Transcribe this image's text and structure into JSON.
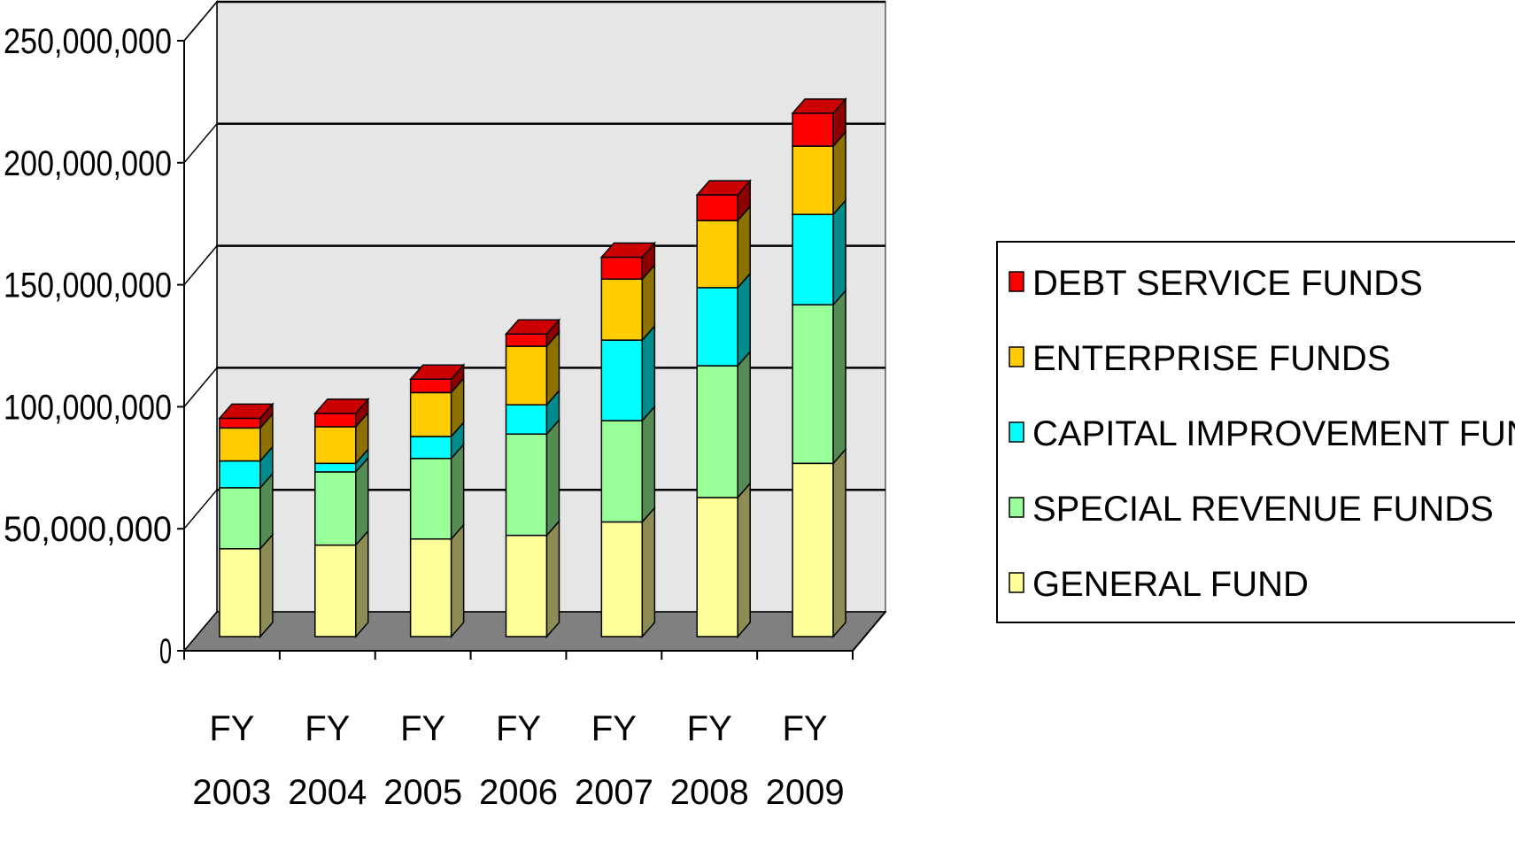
{
  "chart_data": {
    "type": "bar",
    "stacked": true,
    "view": "3d",
    "title": "",
    "xlabel": "",
    "ylabel": "",
    "ylim": [
      0,
      250000000
    ],
    "yticks": [
      0,
      50000000,
      100000000,
      150000000,
      200000000,
      250000000
    ],
    "ytick_labels": [
      "0",
      "50,000,000",
      "100,000,000",
      "150,000,000",
      "200,000,000",
      "250,000,000"
    ],
    "grid": true,
    "legend_position": "right",
    "categories": [
      {
        "line1": "FY",
        "line2": "2003"
      },
      {
        "line1": "FY",
        "line2": "2004"
      },
      {
        "line1": "FY",
        "line2": "2005"
      },
      {
        "line1": "FY",
        "line2": "2006"
      },
      {
        "line1": "FY",
        "line2": "2007"
      },
      {
        "line1": "FY",
        "line2": "2008"
      },
      {
        "line1": "FY",
        "line2": "2009"
      }
    ],
    "series": [
      {
        "name": "GENERAL FUND",
        "color": "#FFFF99",
        "values": [
          36000000,
          37500000,
          40000000,
          41500000,
          47000000,
          57000000,
          71000000
        ]
      },
      {
        "name": "SPECIAL REVENUE FUNDS",
        "color": "#99FF99",
        "values": [
          25000000,
          30000000,
          33000000,
          41500000,
          41500000,
          54000000,
          65000000
        ]
      },
      {
        "name": "CAPITAL IMPROVEMENT FUNDS",
        "color": "#00FFFF",
        "values": [
          11000000,
          3500000,
          9000000,
          12000000,
          33000000,
          32000000,
          37000000
        ]
      },
      {
        "name": "ENTERPRISE FUNDS",
        "color": "#FFCC00",
        "values": [
          13500000,
          15000000,
          18000000,
          24000000,
          25000000,
          27500000,
          28000000
        ]
      },
      {
        "name": "DEBT SERVICE FUNDS",
        "color": "#FF0000",
        "values": [
          4000000,
          5500000,
          5500000,
          5000000,
          9000000,
          10500000,
          13500000
        ]
      }
    ]
  }
}
